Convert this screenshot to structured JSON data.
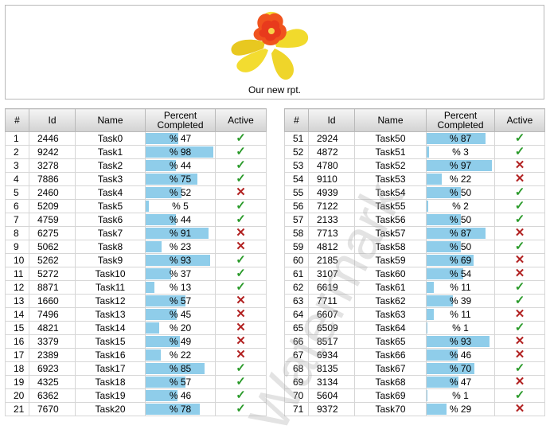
{
  "report": {
    "title": "Our new rpt.",
    "watermark": "Watermark"
  },
  "columns": {
    "hash": "#",
    "id": "Id",
    "name": "Name",
    "percent": "Percent Completed",
    "active": "Active"
  },
  "icons": {
    "true": "check-icon",
    "false": "cross-icon"
  },
  "colors": {
    "bar": "#8fcdea",
    "check": "#2a9a2a",
    "cross": "#b22222"
  },
  "left_rows": [
    {
      "n": "1",
      "id": "2446",
      "name": "Task0",
      "pct": 47,
      "active": true
    },
    {
      "n": "2",
      "id": "9242",
      "name": "Task1",
      "pct": 98,
      "active": true
    },
    {
      "n": "3",
      "id": "3278",
      "name": "Task2",
      "pct": 44,
      "active": true
    },
    {
      "n": "4",
      "id": "7886",
      "name": "Task3",
      "pct": 75,
      "active": true
    },
    {
      "n": "5",
      "id": "2460",
      "name": "Task4",
      "pct": 52,
      "active": false
    },
    {
      "n": "6",
      "id": "5209",
      "name": "Task5",
      "pct": 5,
      "active": true
    },
    {
      "n": "7",
      "id": "4759",
      "name": "Task6",
      "pct": 44,
      "active": true
    },
    {
      "n": "8",
      "id": "6275",
      "name": "Task7",
      "pct": 91,
      "active": false
    },
    {
      "n": "9",
      "id": "5062",
      "name": "Task8",
      "pct": 23,
      "active": false
    },
    {
      "n": "10",
      "id": "5262",
      "name": "Task9",
      "pct": 93,
      "active": true
    },
    {
      "n": "11",
      "id": "5272",
      "name": "Task10",
      "pct": 37,
      "active": true
    },
    {
      "n": "12",
      "id": "8871",
      "name": "Task11",
      "pct": 13,
      "active": true
    },
    {
      "n": "13",
      "id": "1660",
      "name": "Task12",
      "pct": 57,
      "active": false
    },
    {
      "n": "14",
      "id": "7496",
      "name": "Task13",
      "pct": 45,
      "active": false
    },
    {
      "n": "15",
      "id": "4821",
      "name": "Task14",
      "pct": 20,
      "active": false
    },
    {
      "n": "16",
      "id": "3379",
      "name": "Task15",
      "pct": 49,
      "active": false
    },
    {
      "n": "17",
      "id": "2389",
      "name": "Task16",
      "pct": 22,
      "active": false
    },
    {
      "n": "18",
      "id": "6923",
      "name": "Task17",
      "pct": 85,
      "active": true
    },
    {
      "n": "19",
      "id": "4325",
      "name": "Task18",
      "pct": 57,
      "active": true
    },
    {
      "n": "20",
      "id": "6362",
      "name": "Task19",
      "pct": 46,
      "active": true
    },
    {
      "n": "21",
      "id": "7670",
      "name": "Task20",
      "pct": 78,
      "active": true
    }
  ],
  "right_rows": [
    {
      "n": "51",
      "id": "2924",
      "name": "Task50",
      "pct": 87,
      "active": true
    },
    {
      "n": "52",
      "id": "4872",
      "name": "Task51",
      "pct": 3,
      "active": true
    },
    {
      "n": "53",
      "id": "4780",
      "name": "Task52",
      "pct": 97,
      "active": false
    },
    {
      "n": "54",
      "id": "9110",
      "name": "Task53",
      "pct": 22,
      "active": false
    },
    {
      "n": "55",
      "id": "4939",
      "name": "Task54",
      "pct": 50,
      "active": true
    },
    {
      "n": "56",
      "id": "7122",
      "name": "Task55",
      "pct": 2,
      "active": true
    },
    {
      "n": "57",
      "id": "2133",
      "name": "Task56",
      "pct": 50,
      "active": true
    },
    {
      "n": "58",
      "id": "7713",
      "name": "Task57",
      "pct": 87,
      "active": false
    },
    {
      "n": "59",
      "id": "4812",
      "name": "Task58",
      "pct": 50,
      "active": true
    },
    {
      "n": "60",
      "id": "2185",
      "name": "Task59",
      "pct": 69,
      "active": false
    },
    {
      "n": "61",
      "id": "3107",
      "name": "Task60",
      "pct": 54,
      "active": false
    },
    {
      "n": "62",
      "id": "6619",
      "name": "Task61",
      "pct": 11,
      "active": true
    },
    {
      "n": "63",
      "id": "7711",
      "name": "Task62",
      "pct": 39,
      "active": true
    },
    {
      "n": "64",
      "id": "6607",
      "name": "Task63",
      "pct": 11,
      "active": false
    },
    {
      "n": "65",
      "id": "6509",
      "name": "Task64",
      "pct": 1,
      "active": true
    },
    {
      "n": "66",
      "id": "8517",
      "name": "Task65",
      "pct": 93,
      "active": false
    },
    {
      "n": "67",
      "id": "6934",
      "name": "Task66",
      "pct": 46,
      "active": false
    },
    {
      "n": "68",
      "id": "8135",
      "name": "Task67",
      "pct": 70,
      "active": true
    },
    {
      "n": "69",
      "id": "3134",
      "name": "Task68",
      "pct": 47,
      "active": false
    },
    {
      "n": "70",
      "id": "5604",
      "name": "Task69",
      "pct": 1,
      "active": true
    },
    {
      "n": "71",
      "id": "9372",
      "name": "Task70",
      "pct": 29,
      "active": false
    }
  ]
}
